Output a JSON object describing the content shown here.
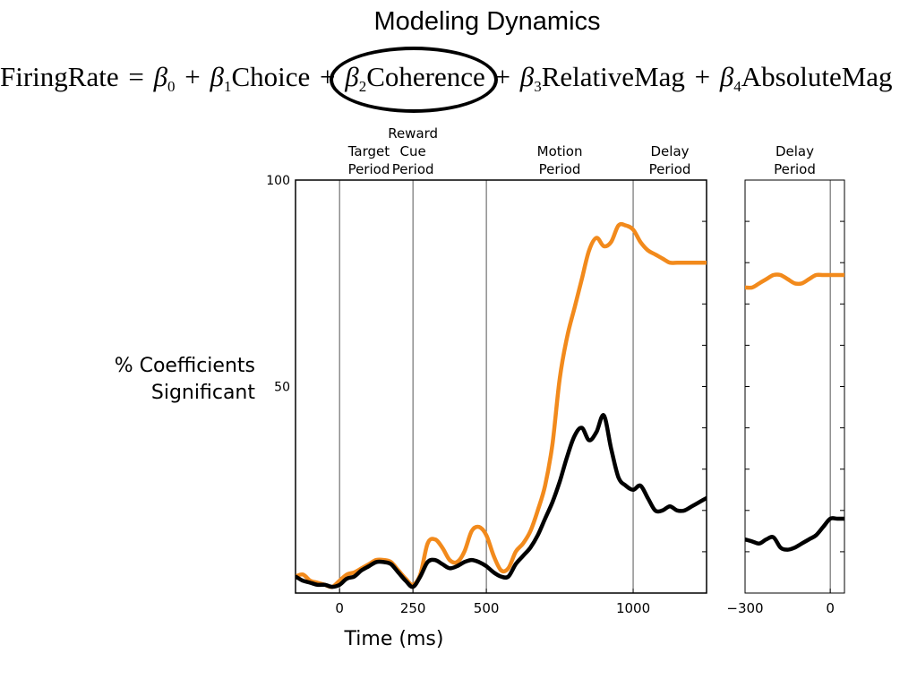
{
  "title": "Modeling Dynamics",
  "equation": {
    "lhs": "FiringRate",
    "equals": "=",
    "plus": "+",
    "beta": "β",
    "terms": [
      {
        "sub": "0",
        "name": ""
      },
      {
        "sub": "1",
        "name": "Choice"
      },
      {
        "sub": "2",
        "name": "Coherence",
        "circled": true
      },
      {
        "sub": "3",
        "name": "RelativeMag"
      },
      {
        "sub": "4",
        "name": "AbsoluteMag"
      }
    ]
  },
  "colors": {
    "orange": "#f28a1c",
    "black": "#000000",
    "axis": "#000000",
    "gridline": "#555555"
  },
  "chart_data": [
    {
      "type": "line",
      "ylabel_lines": [
        "% Coefficients",
        "Significant"
      ],
      "xlabel": "Time (ms)",
      "xlim": [
        -150,
        1250
      ],
      "ylim": [
        0,
        100
      ],
      "yticks": [
        100,
        50
      ],
      "xticks": [
        0,
        250,
        500,
        1000
      ],
      "xtick_labels": [
        "0",
        "250",
        "500",
        "1000"
      ],
      "vlines": [
        0,
        250,
        500,
        1000
      ],
      "period_labels": [
        {
          "lines": [
            "Target",
            "Period"
          ],
          "x": 100
        },
        {
          "lines": [
            "Reward",
            "Cue",
            "Period"
          ],
          "x": 250
        },
        {
          "lines": [
            "Motion",
            "Period"
          ],
          "x": 750
        },
        {
          "lines": [
            "Delay",
            "Period"
          ],
          "x": 1125
        }
      ],
      "series": [
        {
          "color": "orange",
          "x": [
            -150,
            -125,
            -100,
            -75,
            -50,
            -25,
            0,
            25,
            50,
            75,
            100,
            125,
            150,
            175,
            200,
            225,
            250,
            275,
            300,
            325,
            350,
            375,
            400,
            425,
            450,
            475,
            500,
            525,
            550,
            575,
            600,
            625,
            650,
            675,
            700,
            725,
            750,
            775,
            800,
            825,
            850,
            875,
            900,
            925,
            950,
            975,
            1000,
            1025,
            1050,
            1075,
            1100,
            1125,
            1150,
            1175,
            1200,
            1225,
            1250
          ],
          "y": [
            4,
            4.5,
            3,
            2.5,
            2,
            1.5,
            3,
            4.5,
            5,
            6,
            7,
            8,
            8,
            7.5,
            5.5,
            3.5,
            2,
            4.5,
            12,
            13,
            11,
            8,
            7.5,
            10,
            15,
            16,
            14,
            9,
            5.5,
            6,
            10,
            12,
            15,
            20,
            26,
            36,
            52,
            62,
            69,
            76,
            83,
            86,
            84,
            85,
            89,
            89,
            88,
            85,
            83,
            82,
            81,
            80,
            80,
            80,
            80,
            80,
            80
          ]
        },
        {
          "color": "black",
          "x": [
            -150,
            -125,
            -100,
            -75,
            -50,
            -25,
            0,
            25,
            50,
            75,
            100,
            125,
            150,
            175,
            200,
            225,
            250,
            275,
            300,
            325,
            350,
            375,
            400,
            425,
            450,
            475,
            500,
            525,
            550,
            575,
            600,
            625,
            650,
            675,
            700,
            725,
            750,
            775,
            800,
            825,
            850,
            875,
            900,
            925,
            950,
            975,
            1000,
            1025,
            1050,
            1075,
            1100,
            1125,
            1150,
            1175,
            1200,
            1225,
            1250
          ],
          "y": [
            4,
            3,
            2.5,
            2,
            2,
            1.5,
            2,
            3.5,
            4,
            5.5,
            6.5,
            7.5,
            7.5,
            7,
            5,
            3,
            1.5,
            4,
            7.5,
            8,
            7,
            6,
            6.5,
            7.5,
            8,
            7.5,
            6.5,
            5,
            4,
            4,
            7,
            9,
            11,
            14,
            18,
            22,
            27,
            33,
            38,
            40,
            37,
            39,
            43,
            35,
            28,
            26,
            25,
            26,
            23,
            20,
            20,
            21,
            20,
            20,
            21,
            22,
            23
          ]
        }
      ]
    },
    {
      "type": "line",
      "title_lines": [
        "Delay",
        "Period"
      ],
      "xlim": [
        -300,
        50
      ],
      "ylim": [
        0,
        100
      ],
      "xticks": [
        -300,
        0
      ],
      "xtick_labels": [
        "−300",
        "0"
      ],
      "vlines": [
        0
      ],
      "series": [
        {
          "color": "orange",
          "x": [
            -300,
            -275,
            -250,
            -225,
            -200,
            -175,
            -150,
            -125,
            -100,
            -75,
            -50,
            -25,
            0,
            25,
            50
          ],
          "y": [
            74,
            74,
            75,
            76,
            77,
            77,
            76,
            75,
            75,
            76,
            77,
            77,
            77,
            77,
            77
          ]
        },
        {
          "color": "black",
          "x": [
            -300,
            -275,
            -250,
            -225,
            -200,
            -175,
            -150,
            -125,
            -100,
            -75,
            -50,
            -25,
            0,
            25,
            50
          ],
          "y": [
            13,
            12.5,
            12,
            13,
            13.5,
            11,
            10.5,
            11,
            12,
            13,
            14,
            16,
            18,
            18,
            18
          ]
        }
      ]
    }
  ]
}
